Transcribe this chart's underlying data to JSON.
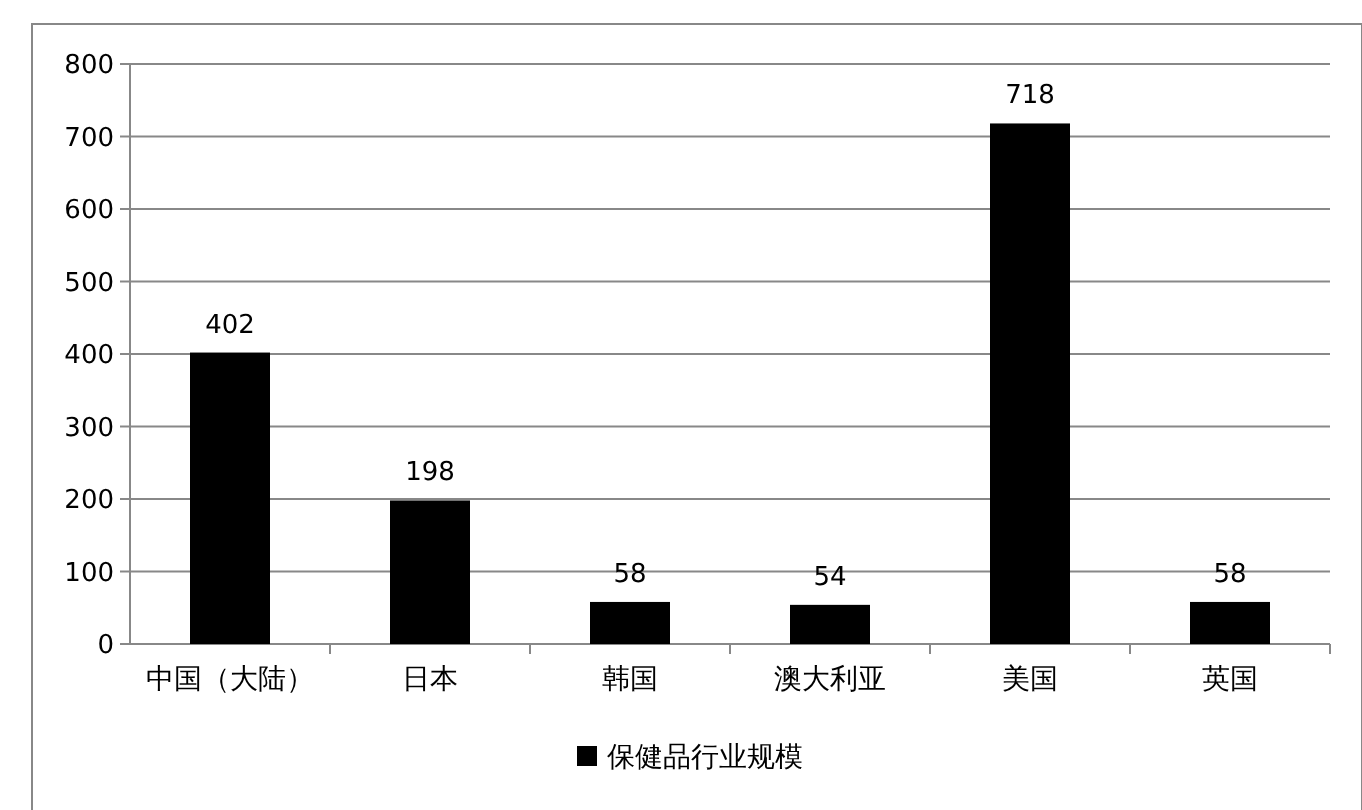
{
  "chart_data": {
    "type": "bar",
    "categories": [
      "中国（大陆）",
      "日本",
      "韩国",
      "澳大利亚",
      "美国",
      "英国"
    ],
    "series": [
      {
        "name": "保健品行业规模",
        "color": "#000000",
        "values": [
          402,
          198,
          58,
          54,
          718,
          58
        ]
      }
    ],
    "ylim": [
      0,
      800
    ],
    "yticks": [
      0,
      100,
      200,
      300,
      400,
      500,
      600,
      700,
      800
    ],
    "grid": "y",
    "legend": "bottom",
    "data_labels": true
  }
}
